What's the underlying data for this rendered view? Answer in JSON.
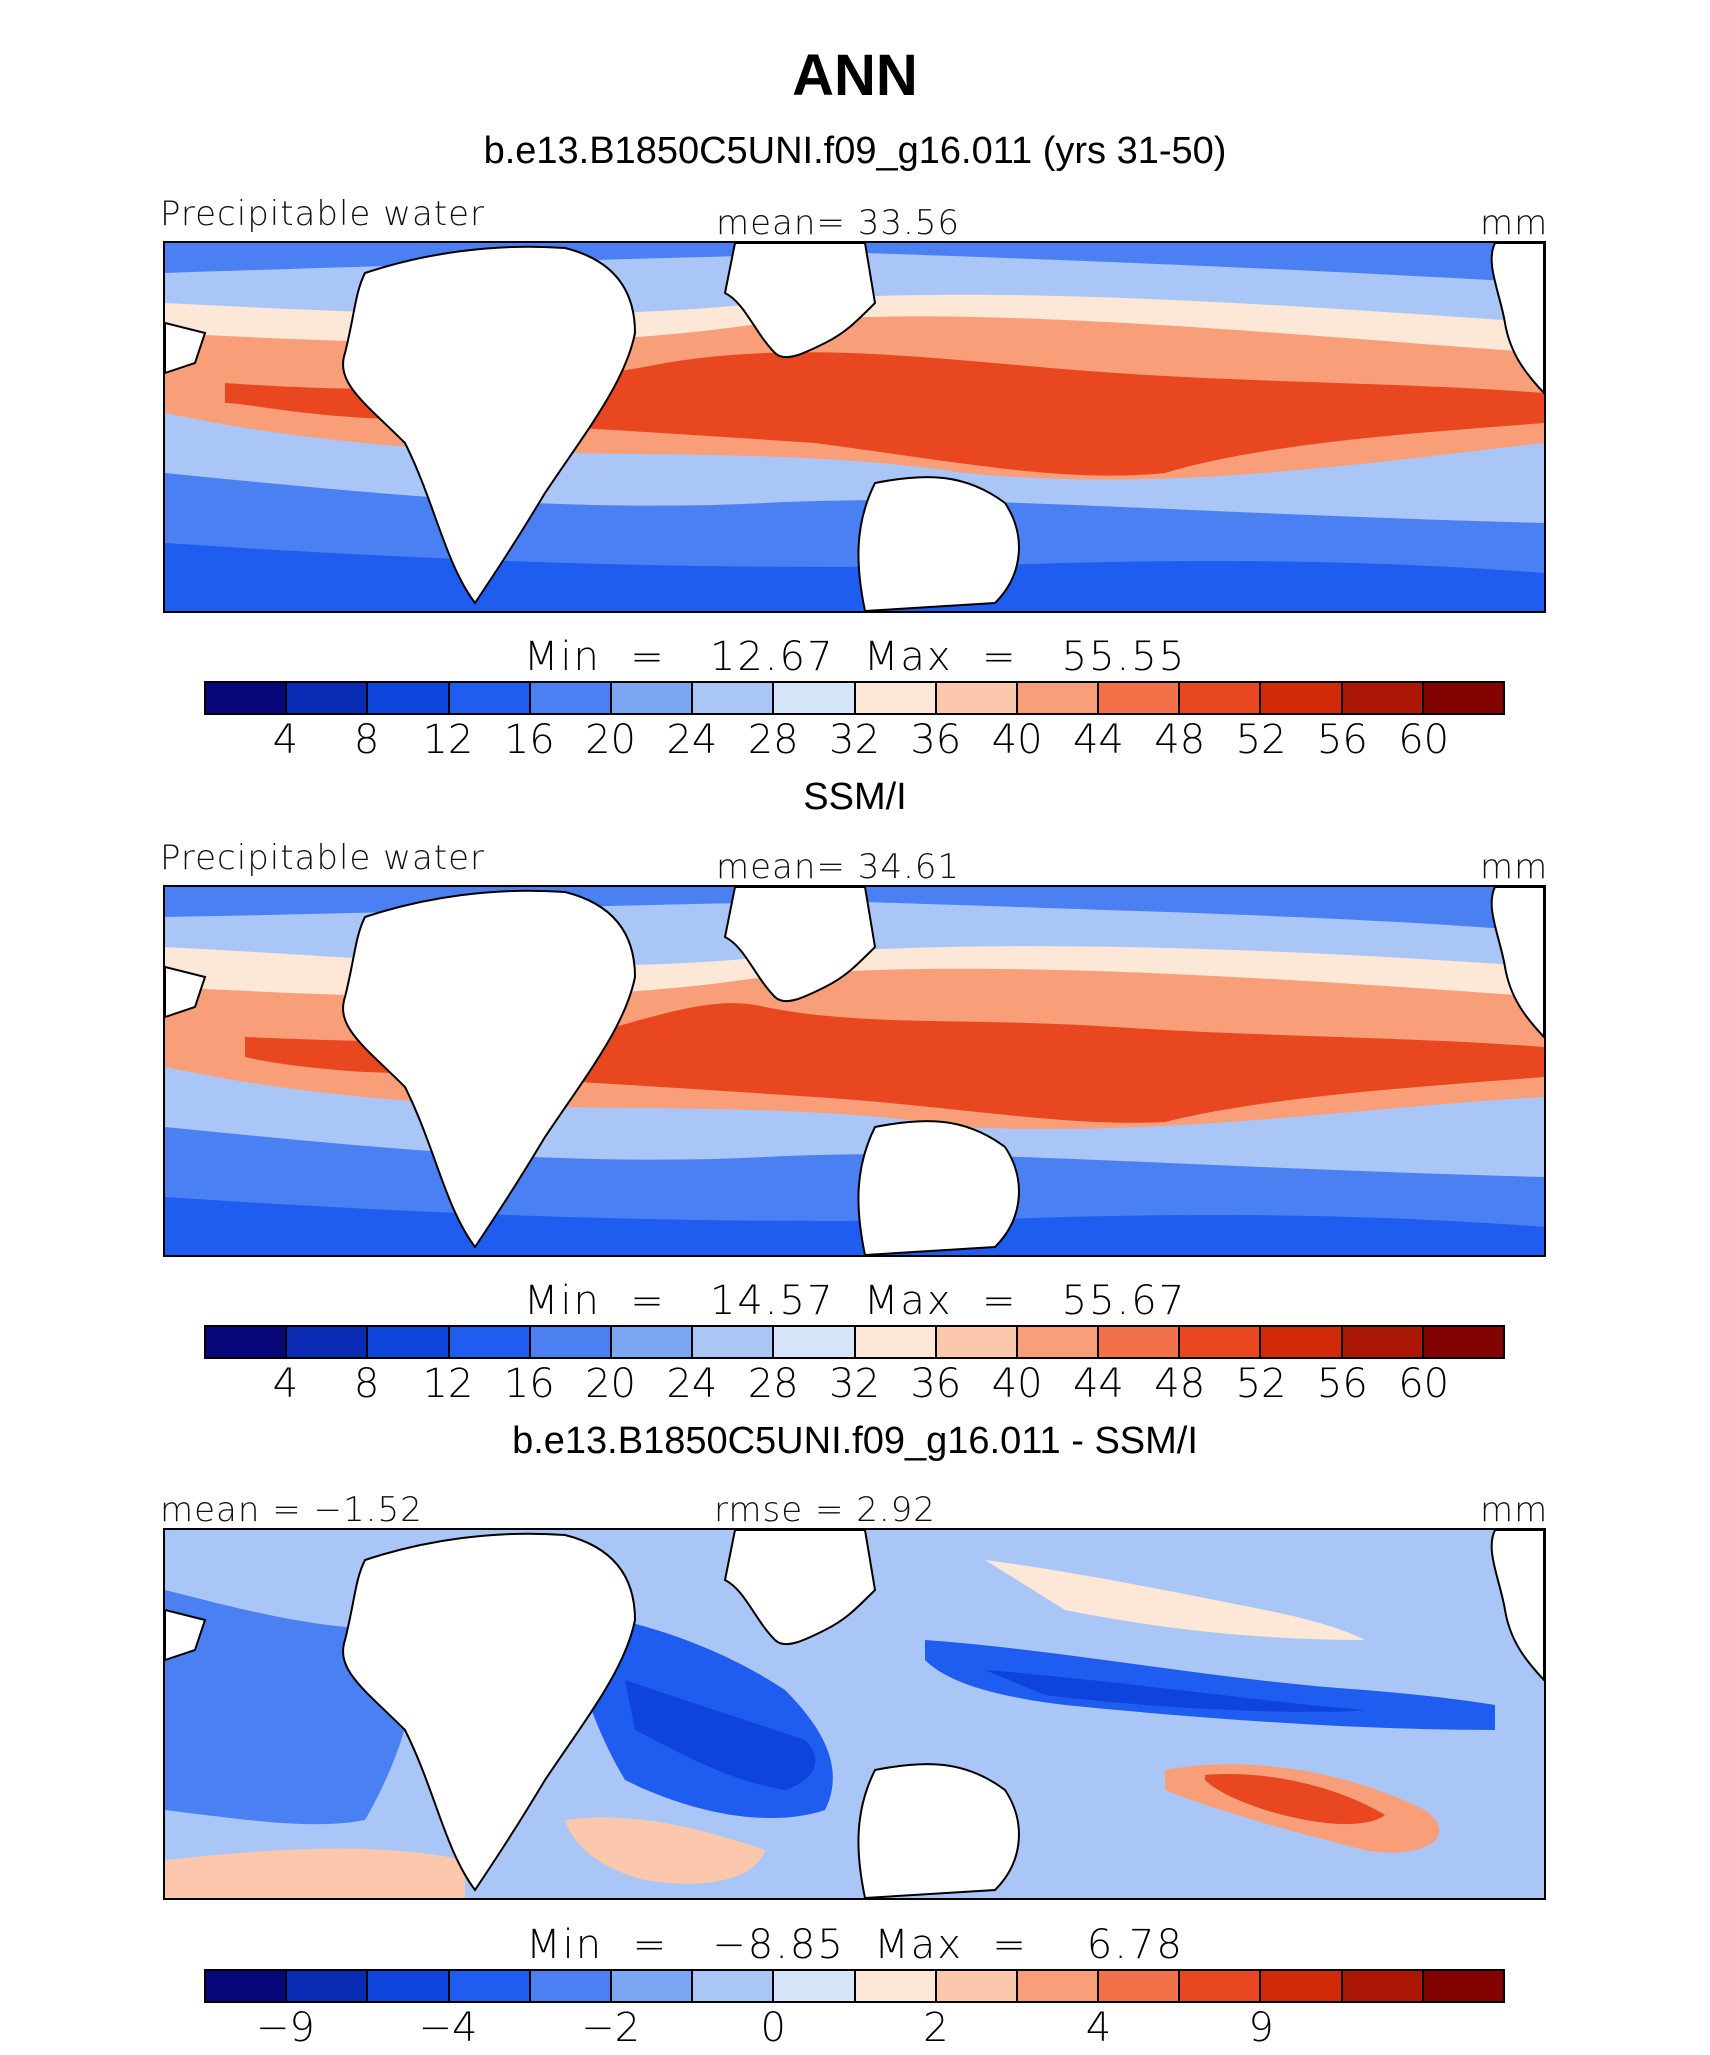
{
  "title": "ANN",
  "chart_data": [
    {
      "type": "contour-map",
      "title": "b.e13.B1850C5UNI.f09_g16.011 (yrs 31-50)",
      "variable": "Precipitable water",
      "mean_label": "mean=   33.56",
      "units": "mm",
      "min_max": "Min  =   12.67  Max  =   55.55",
      "min": 12.67,
      "max": 55.55,
      "mean": 33.56,
      "colorbar_ticks": [
        "4",
        "8",
        "12",
        "16",
        "20",
        "24",
        "28",
        "32",
        "36",
        "40",
        "44",
        "48",
        "52",
        "56",
        "60"
      ]
    },
    {
      "type": "contour-map",
      "title": "SSM/I",
      "variable": "Precipitable water",
      "mean_label": "mean=   34.61",
      "units": "mm",
      "min_max": "Min  =   14.57  Max  =   55.67",
      "min": 14.57,
      "max": 55.67,
      "mean": 34.61,
      "colorbar_ticks": [
        "4",
        "8",
        "12",
        "16",
        "20",
        "24",
        "28",
        "32",
        "36",
        "40",
        "44",
        "48",
        "52",
        "56",
        "60"
      ]
    },
    {
      "type": "contour-map",
      "title": "b.e13.B1850C5UNI.f09_g16.011 - SSM/I",
      "left_label": "mean =   −1.52",
      "rmse_label": "rmse =    2.92",
      "units": "mm",
      "min_max": "Min  =   −8.85  Max  =    6.78",
      "min": -8.85,
      "max": 6.78,
      "mean": -1.52,
      "rmse": 2.92,
      "colorbar_ticks": [
        "−9",
        "",
        "−4",
        "",
        "−2",
        "",
        "0",
        "",
        "2",
        "",
        "4",
        "",
        "9",
        "",
        ""
      ]
    }
  ],
  "colors": {
    "palette": [
      "#08087a",
      "#0a2bb4",
      "#0d45dc",
      "#1f5cf0",
      "#4a80f2",
      "#7aa6f4",
      "#aac6f6",
      "#d6e6fa",
      "#fde7d6",
      "#fbc8ad",
      "#f89f7a",
      "#f27148",
      "#e9471f",
      "#d02a08",
      "#aa1705",
      "#820300"
    ]
  }
}
